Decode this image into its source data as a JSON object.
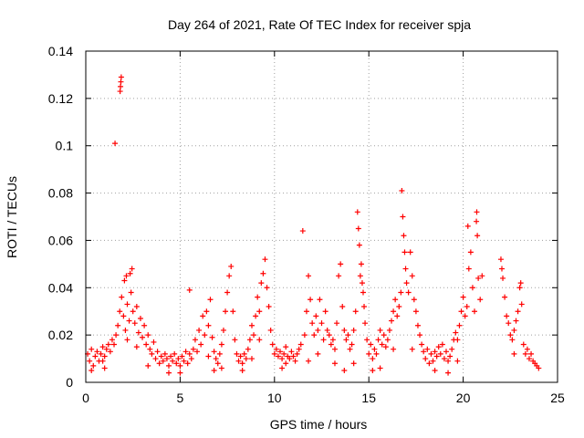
{
  "chart_data": {
    "type": "scatter",
    "title": "Day 264 of 2021, Rate Of TEC Index for receiver spja",
    "xlabel": "GPS time / hours",
    "ylabel": "ROTI / TECUs",
    "xlim": [
      0,
      25
    ],
    "ylim": [
      0,
      0.14
    ],
    "x_ticks": [
      0,
      5,
      10,
      15,
      20,
      25
    ],
    "y_ticks": [
      0,
      0.02,
      0.04,
      0.06,
      0.08,
      0.1,
      0.12,
      0.14
    ],
    "x_tick_labels": [
      "0",
      "5",
      "10",
      "15",
      "20",
      "25"
    ],
    "y_tick_labels": [
      "0",
      "0.02",
      "0.04",
      "0.06",
      "0.08",
      "0.1",
      "0.12",
      "0.14"
    ],
    "grid": true,
    "marker": "+",
    "series": [
      {
        "name": "ROTI",
        "color": "#ff0000",
        "points": [
          [
            0.1,
            0.012
          ],
          [
            0.2,
            0.009
          ],
          [
            0.3,
            0.014
          ],
          [
            0.4,
            0.007
          ],
          [
            0.5,
            0.011
          ],
          [
            0.6,
            0.013
          ],
          [
            0.7,
            0.009
          ],
          [
            0.8,
            0.012
          ],
          [
            0.9,
            0.015
          ],
          [
            1.0,
            0.011
          ],
          [
            1.1,
            0.014
          ],
          [
            1.2,
            0.016
          ],
          [
            1.3,
            0.013
          ],
          [
            1.4,
            0.018
          ],
          [
            1.5,
            0.016
          ],
          [
            1.55,
            0.101
          ],
          [
            1.6,
            0.02
          ],
          [
            1.7,
            0.024
          ],
          [
            1.8,
            0.03
          ],
          [
            1.82,
            0.123
          ],
          [
            1.84,
            0.125
          ],
          [
            1.86,
            0.127
          ],
          [
            1.88,
            0.129
          ],
          [
            1.9,
            0.036
          ],
          [
            2.0,
            0.028
          ],
          [
            2.05,
            0.043
          ],
          [
            2.1,
            0.022
          ],
          [
            2.15,
            0.045
          ],
          [
            2.2,
            0.033
          ],
          [
            2.3,
            0.026
          ],
          [
            2.35,
            0.046
          ],
          [
            2.4,
            0.038
          ],
          [
            2.45,
            0.048
          ],
          [
            2.5,
            0.03
          ],
          [
            2.6,
            0.025
          ],
          [
            2.7,
            0.032
          ],
          [
            2.8,
            0.021
          ],
          [
            2.9,
            0.027
          ],
          [
            3.0,
            0.019
          ],
          [
            3.1,
            0.024
          ],
          [
            3.2,
            0.016
          ],
          [
            3.3,
            0.02
          ],
          [
            3.4,
            0.014
          ],
          [
            3.5,
            0.012
          ],
          [
            3.6,
            0.017
          ],
          [
            3.7,
            0.01
          ],
          [
            3.8,
            0.013
          ],
          [
            3.9,
            0.008
          ],
          [
            4.0,
            0.011
          ],
          [
            4.1,
            0.009
          ],
          [
            4.2,
            0.012
          ],
          [
            4.3,
            0.01
          ],
          [
            4.4,
            0.007
          ],
          [
            4.5,
            0.011
          ],
          [
            4.6,
            0.009
          ],
          [
            4.7,
            0.012
          ],
          [
            4.8,
            0.008
          ],
          [
            4.9,
            0.01
          ],
          [
            5.0,
            0.007
          ],
          [
            5.1,
            0.011
          ],
          [
            5.2,
            0.009
          ],
          [
            5.3,
            0.013
          ],
          [
            5.4,
            0.008
          ],
          [
            5.5,
            0.012
          ],
          [
            5.5,
            0.039
          ],
          [
            5.6,
            0.01
          ],
          [
            5.7,
            0.014
          ],
          [
            5.8,
            0.018
          ],
          [
            5.9,
            0.013
          ],
          [
            6.0,
            0.022
          ],
          [
            6.1,
            0.016
          ],
          [
            6.2,
            0.028
          ],
          [
            6.3,
            0.02
          ],
          [
            6.4,
            0.03
          ],
          [
            6.5,
            0.024
          ],
          [
            6.6,
            0.035
          ],
          [
            6.7,
            0.019
          ],
          [
            6.8,
            0.013
          ],
          [
            6.9,
            0.01
          ],
          [
            7.0,
            0.008
          ],
          [
            7.1,
            0.012
          ],
          [
            7.2,
            0.016
          ],
          [
            7.3,
            0.022
          ],
          [
            7.4,
            0.03
          ],
          [
            7.5,
            0.038
          ],
          [
            7.6,
            0.045
          ],
          [
            7.7,
            0.049
          ],
          [
            7.8,
            0.03
          ],
          [
            7.9,
            0.018
          ],
          [
            8.0,
            0.012
          ],
          [
            8.1,
            0.009
          ],
          [
            8.2,
            0.011
          ],
          [
            8.3,
            0.008
          ],
          [
            8.4,
            0.012
          ],
          [
            8.5,
            0.01
          ],
          [
            8.6,
            0.014
          ],
          [
            8.7,
            0.018
          ],
          [
            8.8,
            0.024
          ],
          [
            8.9,
            0.02
          ],
          [
            9.0,
            0.028
          ],
          [
            9.1,
            0.036
          ],
          [
            9.2,
            0.03
          ],
          [
            9.3,
            0.042
          ],
          [
            9.4,
            0.046
          ],
          [
            9.5,
            0.052
          ],
          [
            9.6,
            0.04
          ],
          [
            9.7,
            0.032
          ],
          [
            9.8,
            0.022
          ],
          [
            9.9,
            0.016
          ],
          [
            10.0,
            0.012
          ],
          [
            10.1,
            0.014
          ],
          [
            10.2,
            0.011
          ],
          [
            10.3,
            0.013
          ],
          [
            10.4,
            0.01
          ],
          [
            10.5,
            0.012
          ],
          [
            10.6,
            0.015
          ],
          [
            10.7,
            0.011
          ],
          [
            10.8,
            0.01
          ],
          [
            10.9,
            0.013
          ],
          [
            11.0,
            0.011
          ],
          [
            11.1,
            0.009
          ],
          [
            11.2,
            0.012
          ],
          [
            11.3,
            0.014
          ],
          [
            11.4,
            0.016
          ],
          [
            11.5,
            0.064
          ],
          [
            11.6,
            0.02
          ],
          [
            11.7,
            0.03
          ],
          [
            11.8,
            0.045
          ],
          [
            11.9,
            0.035
          ],
          [
            12.0,
            0.025
          ],
          [
            12.1,
            0.02
          ],
          [
            12.2,
            0.028
          ],
          [
            12.3,
            0.022
          ],
          [
            12.4,
            0.035
          ],
          [
            12.5,
            0.025
          ],
          [
            12.6,
            0.018
          ],
          [
            12.7,
            0.03
          ],
          [
            12.8,
            0.022
          ],
          [
            12.9,
            0.02
          ],
          [
            13.0,
            0.016
          ],
          [
            13.1,
            0.018
          ],
          [
            13.2,
            0.014
          ],
          [
            13.3,
            0.025
          ],
          [
            13.4,
            0.045
          ],
          [
            13.5,
            0.05
          ],
          [
            13.6,
            0.032
          ],
          [
            13.7,
            0.022
          ],
          [
            13.8,
            0.018
          ],
          [
            13.9,
            0.02
          ],
          [
            14.0,
            0.014
          ],
          [
            14.1,
            0.016
          ],
          [
            14.2,
            0.022
          ],
          [
            14.3,
            0.03
          ],
          [
            14.4,
            0.072
          ],
          [
            14.45,
            0.065
          ],
          [
            14.5,
            0.058
          ],
          [
            14.55,
            0.045
          ],
          [
            14.6,
            0.05
          ],
          [
            14.65,
            0.042
          ],
          [
            14.7,
            0.038
          ],
          [
            14.75,
            0.032
          ],
          [
            14.8,
            0.025
          ],
          [
            14.9,
            0.018
          ],
          [
            15.0,
            0.012
          ],
          [
            15.1,
            0.016
          ],
          [
            15.2,
            0.01
          ],
          [
            15.3,
            0.014
          ],
          [
            15.4,
            0.012
          ],
          [
            15.5,
            0.018
          ],
          [
            15.6,
            0.022
          ],
          [
            15.7,
            0.016
          ],
          [
            15.8,
            0.02
          ],
          [
            15.9,
            0.015
          ],
          [
            16.0,
            0.018
          ],
          [
            16.1,
            0.022
          ],
          [
            16.2,
            0.026
          ],
          [
            16.3,
            0.03
          ],
          [
            16.4,
            0.035
          ],
          [
            16.5,
            0.028
          ],
          [
            16.6,
            0.032
          ],
          [
            16.7,
            0.038
          ],
          [
            16.75,
            0.081
          ],
          [
            16.8,
            0.07
          ],
          [
            16.85,
            0.062
          ],
          [
            16.9,
            0.055
          ],
          [
            16.95,
            0.048
          ],
          [
            17.0,
            0.042
          ],
          [
            17.1,
            0.038
          ],
          [
            17.2,
            0.055
          ],
          [
            17.3,
            0.045
          ],
          [
            17.4,
            0.035
          ],
          [
            17.5,
            0.03
          ],
          [
            17.6,
            0.024
          ],
          [
            17.7,
            0.02
          ],
          [
            17.8,
            0.016
          ],
          [
            17.9,
            0.013
          ],
          [
            18.0,
            0.01
          ],
          [
            18.1,
            0.014
          ],
          [
            18.2,
            0.008
          ],
          [
            18.3,
            0.012
          ],
          [
            18.4,
            0.009
          ],
          [
            18.5,
            0.013
          ],
          [
            18.6,
            0.011
          ],
          [
            18.7,
            0.015
          ],
          [
            18.8,
            0.012
          ],
          [
            18.9,
            0.016
          ],
          [
            19.0,
            0.01
          ],
          [
            19.1,
            0.013
          ],
          [
            19.2,
            0.009
          ],
          [
            19.3,
            0.011
          ],
          [
            19.4,
            0.014
          ],
          [
            19.5,
            0.018
          ],
          [
            19.6,
            0.021
          ],
          [
            19.7,
            0.018
          ],
          [
            19.8,
            0.024
          ],
          [
            19.9,
            0.03
          ],
          [
            20.0,
            0.036
          ],
          [
            20.1,
            0.028
          ],
          [
            20.2,
            0.032
          ],
          [
            20.25,
            0.066
          ],
          [
            20.3,
            0.048
          ],
          [
            20.4,
            0.055
          ],
          [
            20.5,
            0.04
          ],
          [
            20.6,
            0.03
          ],
          [
            20.7,
            0.068
          ],
          [
            20.72,
            0.072
          ],
          [
            20.75,
            0.062
          ],
          [
            20.8,
            0.044
          ],
          [
            20.9,
            0.035
          ],
          [
            22.0,
            0.052
          ],
          [
            22.05,
            0.048
          ],
          [
            22.1,
            0.044
          ],
          [
            22.2,
            0.036
          ],
          [
            22.3,
            0.028
          ],
          [
            22.4,
            0.025
          ],
          [
            22.5,
            0.02
          ],
          [
            22.6,
            0.018
          ],
          [
            22.7,
            0.022
          ],
          [
            22.8,
            0.026
          ],
          [
            22.9,
            0.03
          ],
          [
            23.0,
            0.04
          ],
          [
            23.05,
            0.042
          ],
          [
            23.1,
            0.033
          ],
          [
            23.2,
            0.016
          ],
          [
            23.3,
            0.012
          ],
          [
            23.4,
            0.014
          ],
          [
            23.5,
            0.01
          ],
          [
            23.6,
            0.012
          ],
          [
            23.7,
            0.009
          ],
          [
            23.8,
            0.008
          ],
          [
            23.9,
            0.007
          ],
          [
            24.0,
            0.006
          ],
          [
            0.3,
            0.005
          ],
          [
            0.9,
            0.009
          ],
          [
            2.2,
            0.018
          ],
          [
            2.7,
            0.015
          ],
          [
            3.3,
            0.007
          ],
          [
            6.5,
            0.011
          ],
          [
            7.2,
            0.006
          ],
          [
            8.8,
            0.01
          ],
          [
            9.2,
            0.018
          ],
          [
            10.6,
            0.008
          ],
          [
            12.3,
            0.012
          ],
          [
            13.2,
            0.008
          ],
          [
            14.2,
            0.008
          ],
          [
            15.6,
            0.006
          ],
          [
            16.3,
            0.014
          ],
          [
            17.3,
            0.014
          ],
          [
            18.5,
            0.005
          ],
          [
            19.7,
            0.009
          ],
          [
            21.0,
            0.045
          ],
          [
            22.7,
            0.012
          ],
          [
            5.0,
            0.004
          ],
          [
            4.4,
            0.004
          ],
          [
            10.4,
            0.006
          ],
          [
            11.8,
            0.009
          ],
          [
            13.7,
            0.005
          ],
          [
            15.2,
            0.005
          ],
          [
            19.2,
            0.004
          ],
          [
            8.3,
            0.005
          ],
          [
            6.8,
            0.005
          ],
          [
            1.0,
            0.006
          ]
        ]
      }
    ]
  }
}
